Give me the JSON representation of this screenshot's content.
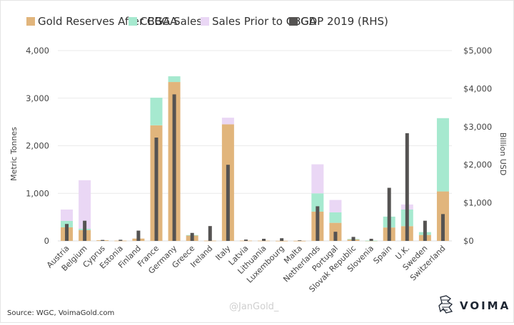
{
  "chart_data": {
    "type": "bar",
    "stacked": true,
    "title": "",
    "categories": [
      "Austria",
      "Belgium",
      "Cyprus",
      "Estonia",
      "Finland",
      "France",
      "Germany",
      "Greece",
      "Ireland",
      "Italy",
      "Latvia",
      "Lithuania",
      "Luxembourg",
      "Malta",
      "Netherlands",
      "Portugal",
      "Slovak Republic",
      "Slovenia",
      "Spain",
      "U.K.",
      "Sweden",
      "Switzerland"
    ],
    "series": [
      {
        "name": "Gold Reserves After CBGA",
        "axis": "left",
        "color": "#e1b57c",
        "values": [
          285,
          227,
          14,
          6,
          49,
          2430,
          3340,
          115,
          6,
          2450,
          7,
          6,
          2,
          2,
          615,
          380,
          32,
          3,
          282,
          310,
          125,
          1040
        ]
      },
      {
        "name": "CBGA Sales",
        "axis": "left",
        "color": "#a6e9cf",
        "values": [
          135,
          28,
          0,
          0,
          0,
          580,
          120,
          8,
          0,
          0,
          0,
          0,
          0,
          0,
          385,
          220,
          8,
          5,
          228,
          350,
          60,
          1540
        ]
      },
      {
        "name": "Sales Prior to CBGA",
        "axis": "left",
        "color": "#ead7f5",
        "values": [
          240,
          1020,
          0,
          0,
          0,
          0,
          0,
          0,
          0,
          140,
          0,
          0,
          0,
          0,
          610,
          260,
          0,
          0,
          0,
          105,
          0,
          0
        ]
      },
      {
        "name": "GDP 2019 (RHS)",
        "axis": "right",
        "color": "#555352",
        "values": [
          445,
          530,
          25,
          30,
          270,
          2715,
          3850,
          210,
          390,
          2000,
          35,
          55,
          70,
          15,
          910,
          240,
          105,
          55,
          1395,
          2830,
          530,
          705
        ]
      }
    ],
    "ylabel": "Metric Tonnes",
    "ylim": [
      0,
      4000
    ],
    "yticks": [
      "0",
      "1,000",
      "2,000",
      "3,000",
      "4,000"
    ],
    "ytick_values": [
      0,
      1000,
      2000,
      3000,
      4000
    ],
    "y2label": "Billion USD",
    "y2lim": [
      0,
      5000
    ],
    "y2ticks": [
      "$0",
      "$1,000",
      "$2,000",
      "$3,000",
      "$4,000",
      "$5,000"
    ],
    "y2tick_values": [
      0,
      1000,
      2000,
      3000,
      4000,
      5000
    ],
    "xlabel": "",
    "grid": true,
    "legend_position": "top"
  },
  "footer": {
    "source": "Source: WGC, VoimaGold.com",
    "watermark": "@JanGold_",
    "brand": "VOIMA"
  }
}
